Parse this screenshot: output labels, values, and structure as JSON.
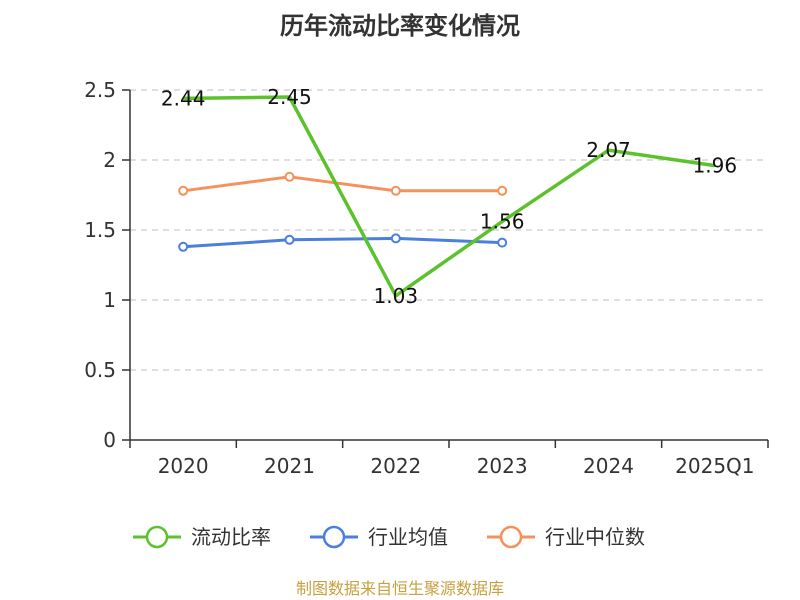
{
  "title": "历年流动比率变化情况",
  "source": "制图数据来自恒生聚源数据库",
  "colors": {
    "流动比率": "#5cc22b",
    "行业均值": "#4a7fde",
    "行业中位数": "#f5915b",
    "grid": "#cccccc",
    "axis": "#333333"
  },
  "chart_data": {
    "type": "line",
    "title": "历年流动比率变化情况",
    "categories": [
      "2020",
      "2021",
      "2022",
      "2023",
      "2024",
      "2025Q1"
    ],
    "ylim": [
      0,
      2.5
    ],
    "yticks": [
      "0",
      "0.5",
      "1",
      "1.5",
      "2",
      "2.5"
    ],
    "grid": true,
    "legend_position": "bottom",
    "series": [
      {
        "name": "流动比率",
        "values": [
          2.44,
          2.45,
          1.03,
          1.56,
          2.07,
          1.96
        ],
        "labels": [
          "2.44",
          "2.45",
          "1.03",
          "1.56",
          "2.07",
          "1.96"
        ]
      },
      {
        "name": "行业均值",
        "values": [
          1.38,
          1.43,
          1.44,
          1.41,
          null,
          null
        ],
        "labels": []
      },
      {
        "name": "行业中位数",
        "values": [
          1.78,
          1.88,
          1.78,
          1.78,
          null,
          null
        ],
        "labels": []
      }
    ]
  }
}
